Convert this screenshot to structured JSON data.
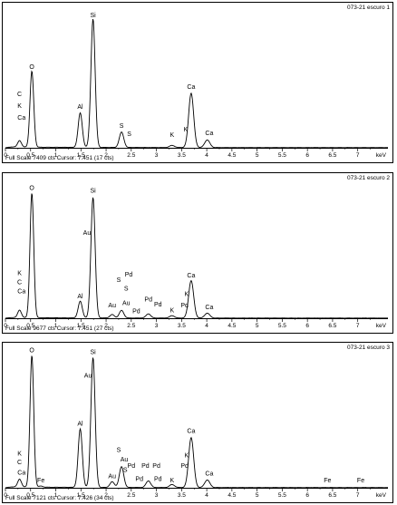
{
  "axis_unit": "keV",
  "tick_labels": [
    "0",
    "0.5",
    "1",
    "1.5",
    "2",
    "2.5",
    "3",
    "3.5",
    "4",
    "4.5",
    "5",
    "5.5",
    "6",
    "6.5",
    "7"
  ],
  "chart_data": [
    {
      "type": "line",
      "title": "073-21 escuro 1",
      "xlabel": "keV",
      "xlim": [
        0,
        7.6
      ],
      "status": "Full Scale 7409 cts Cursor: 7.451  (17 cts)",
      "full_scale": 7409,
      "peaks": [
        {
          "x": 0.28,
          "h": 360
        },
        {
          "x": 0.525,
          "h": 4200
        },
        {
          "x": 1.486,
          "h": 1900
        },
        {
          "x": 1.74,
          "h": 7100
        },
        {
          "x": 2.307,
          "h": 850
        },
        {
          "x": 3.31,
          "h": 120
        },
        {
          "x": 3.69,
          "h": 3000
        },
        {
          "x": 4.01,
          "h": 420
        }
      ],
      "labels": [
        {
          "text": "Si",
          "x": 1.74,
          "y": 7200
        },
        {
          "text": "O",
          "x": 0.525,
          "y": 4350
        },
        {
          "text": "C",
          "x": 0.28,
          "y": 2850
        },
        {
          "text": "K",
          "x": 0.28,
          "y": 2200
        },
        {
          "text": "Ca",
          "x": 0.32,
          "y": 1550
        },
        {
          "text": "Al",
          "x": 1.486,
          "y": 2150
        },
        {
          "text": "S",
          "x": 2.307,
          "y": 1100
        },
        {
          "text": "S",
          "x": 2.46,
          "y": 650
        },
        {
          "text": "K",
          "x": 3.31,
          "y": 600
        },
        {
          "text": "K",
          "x": 3.58,
          "y": 900
        },
        {
          "text": "Ca",
          "x": 3.69,
          "y": 3250
        },
        {
          "text": "Ca",
          "x": 4.05,
          "y": 700
        }
      ]
    },
    {
      "type": "line",
      "title": "073-21 escuro 2",
      "xlabel": "keV",
      "xlim": [
        0,
        7.6
      ],
      "status": "Full Scale 9677 cts Cursor: 7.451  (27 cts)",
      "full_scale": 9677,
      "peaks": [
        {
          "x": 0.28,
          "h": 550
        },
        {
          "x": 0.525,
          "h": 9000
        },
        {
          "x": 1.486,
          "h": 1200
        },
        {
          "x": 1.74,
          "h": 8700
        },
        {
          "x": 2.12,
          "h": 250
        },
        {
          "x": 2.307,
          "h": 550
        },
        {
          "x": 2.84,
          "h": 300
        },
        {
          "x": 3.31,
          "h": 170
        },
        {
          "x": 3.69,
          "h": 2700
        },
        {
          "x": 4.01,
          "h": 350
        }
      ],
      "labels": [
        {
          "text": "Si",
          "x": 1.74,
          "y": 9050
        },
        {
          "text": "O",
          "x": 0.525,
          "y": 9250
        },
        {
          "text": "Au",
          "x": 1.62,
          "y": 6000
        },
        {
          "text": "K",
          "x": 0.28,
          "y": 3100
        },
        {
          "text": "C",
          "x": 0.28,
          "y": 2450
        },
        {
          "text": "Ca",
          "x": 0.32,
          "y": 1800
        },
        {
          "text": "Al",
          "x": 1.486,
          "y": 1450
        },
        {
          "text": "S",
          "x": 2.25,
          "y": 2600
        },
        {
          "text": "Pd",
          "x": 2.45,
          "y": 3000
        },
        {
          "text": "S",
          "x": 2.4,
          "y": 2000
        },
        {
          "text": "Au",
          "x": 2.4,
          "y": 950
        },
        {
          "text": "Au",
          "x": 2.12,
          "y": 800
        },
        {
          "text": "Pd",
          "x": 2.84,
          "y": 1200
        },
        {
          "text": "Pd",
          "x": 3.03,
          "y": 850
        },
        {
          "text": "Pd",
          "x": 2.6,
          "y": 350
        },
        {
          "text": "K",
          "x": 3.31,
          "y": 420
        },
        {
          "text": "K",
          "x": 3.6,
          "y": 1600
        },
        {
          "text": "Pd",
          "x": 3.56,
          "y": 800
        },
        {
          "text": "Ca",
          "x": 3.69,
          "y": 2950
        },
        {
          "text": "Ca",
          "x": 4.05,
          "y": 650
        }
      ]
    },
    {
      "type": "line",
      "title": "073-21 escuro 3",
      "xlabel": "keV",
      "xlim": [
        0,
        7.6
      ],
      "status": "Full Scale 7121 cts Cursor: 7.426  (34 cts)",
      "full_scale": 7121,
      "peaks": [
        {
          "x": 0.28,
          "h": 420
        },
        {
          "x": 0.525,
          "h": 7000
        },
        {
          "x": 0.705,
          "h": 60
        },
        {
          "x": 1.486,
          "h": 3100
        },
        {
          "x": 1.74,
          "h": 6900
        },
        {
          "x": 2.12,
          "h": 300
        },
        {
          "x": 2.307,
          "h": 1100
        },
        {
          "x": 2.84,
          "h": 350
        },
        {
          "x": 3.31,
          "h": 160
        },
        {
          "x": 3.69,
          "h": 2650
        },
        {
          "x": 4.01,
          "h": 400
        }
      ],
      "labels": [
        {
          "text": "O",
          "x": 0.525,
          "y": 7200
        },
        {
          "text": "Si",
          "x": 1.74,
          "y": 7100
        },
        {
          "text": "Au",
          "x": 1.64,
          "y": 5850
        },
        {
          "text": "K",
          "x": 0.28,
          "y": 1700
        },
        {
          "text": "C",
          "x": 0.28,
          "y": 1250
        },
        {
          "text": "Ca",
          "x": 0.32,
          "y": 700
        },
        {
          "text": "Fe",
          "x": 0.705,
          "y": 300
        },
        {
          "text": "Al",
          "x": 1.486,
          "y": 3300
        },
        {
          "text": "S",
          "x": 2.25,
          "y": 1900
        },
        {
          "text": "Au",
          "x": 2.36,
          "y": 1400
        },
        {
          "text": "S",
          "x": 2.38,
          "y": 850
        },
        {
          "text": "Pd",
          "x": 2.5,
          "y": 1050
        },
        {
          "text": "Pd",
          "x": 2.78,
          "y": 1050
        },
        {
          "text": "Pd",
          "x": 3.0,
          "y": 1050
        },
        {
          "text": "Au",
          "x": 2.12,
          "y": 500
        },
        {
          "text": "Pd",
          "x": 2.66,
          "y": 350
        },
        {
          "text": "Pd",
          "x": 3.03,
          "y": 350
        },
        {
          "text": "K",
          "x": 3.31,
          "y": 300
        },
        {
          "text": "K",
          "x": 3.6,
          "y": 1600
        },
        {
          "text": "Pd",
          "x": 3.56,
          "y": 1050
        },
        {
          "text": "Ca",
          "x": 3.69,
          "y": 2900
        },
        {
          "text": "Ca",
          "x": 4.05,
          "y": 650
        },
        {
          "text": "Fe",
          "x": 6.4,
          "y": 300
        },
        {
          "text": "Fe",
          "x": 7.06,
          "y": 300
        }
      ]
    }
  ]
}
